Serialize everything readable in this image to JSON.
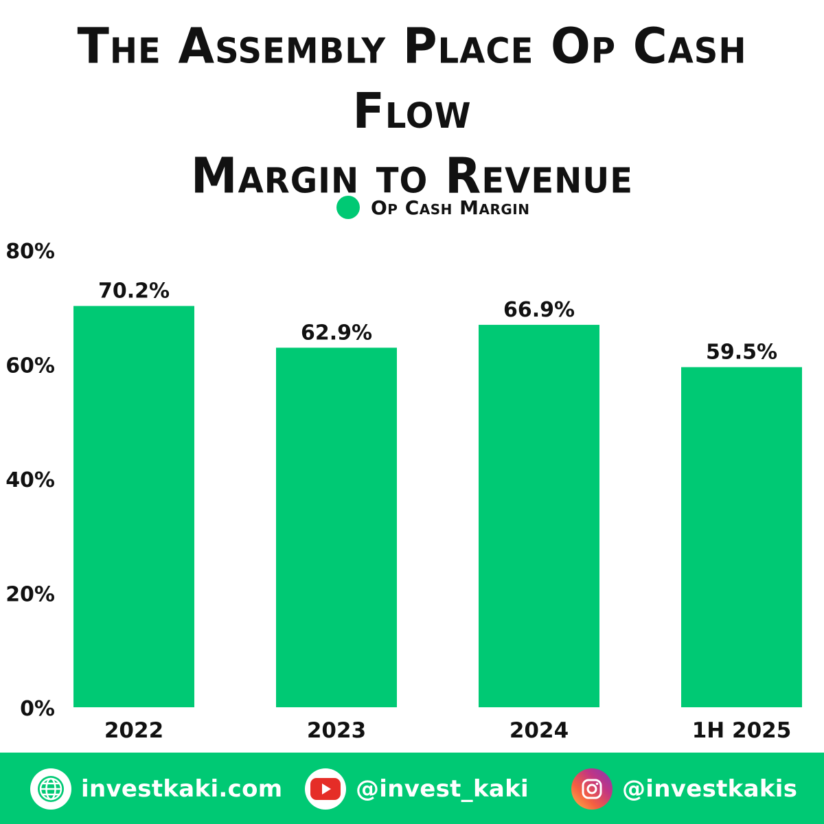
{
  "colors": {
    "bar": "#00c974",
    "footer": "#00c974",
    "text": "#111111",
    "background": "#ffffff"
  },
  "title_line1": "The Assembly Place Op Cash Flow",
  "title_line2": "Margin to Revenue",
  "legend": {
    "label": "Op Cash Margin",
    "icon": "circle-marker"
  },
  "chart_data": {
    "type": "bar",
    "title": "The Assembly Place Op Cash Flow Margin to Revenue",
    "categories": [
      "2022",
      "2023",
      "2024",
      "1H 2025"
    ],
    "series": [
      {
        "name": "Op Cash Margin",
        "values": [
          70.2,
          62.9,
          66.9,
          59.5
        ]
      }
    ],
    "data_labels": [
      "70.2%",
      "62.9%",
      "66.9%",
      "59.5%"
    ],
    "y_ticks": [
      0,
      20,
      40,
      60,
      80
    ],
    "y_tick_labels": [
      "0%",
      "20%",
      "40%",
      "60%",
      "80%"
    ],
    "ylim": [
      0,
      80
    ],
    "xlabel": "",
    "ylabel": "",
    "grid": false,
    "legend_position": "top-center"
  },
  "footer": {
    "website": {
      "text": "investkaki.com",
      "icon": "globe-icon"
    },
    "youtube": {
      "text": "@invest_kaki",
      "icon": "youtube-icon"
    },
    "instagram": {
      "text": "@investkakis",
      "icon": "instagram-icon"
    }
  }
}
